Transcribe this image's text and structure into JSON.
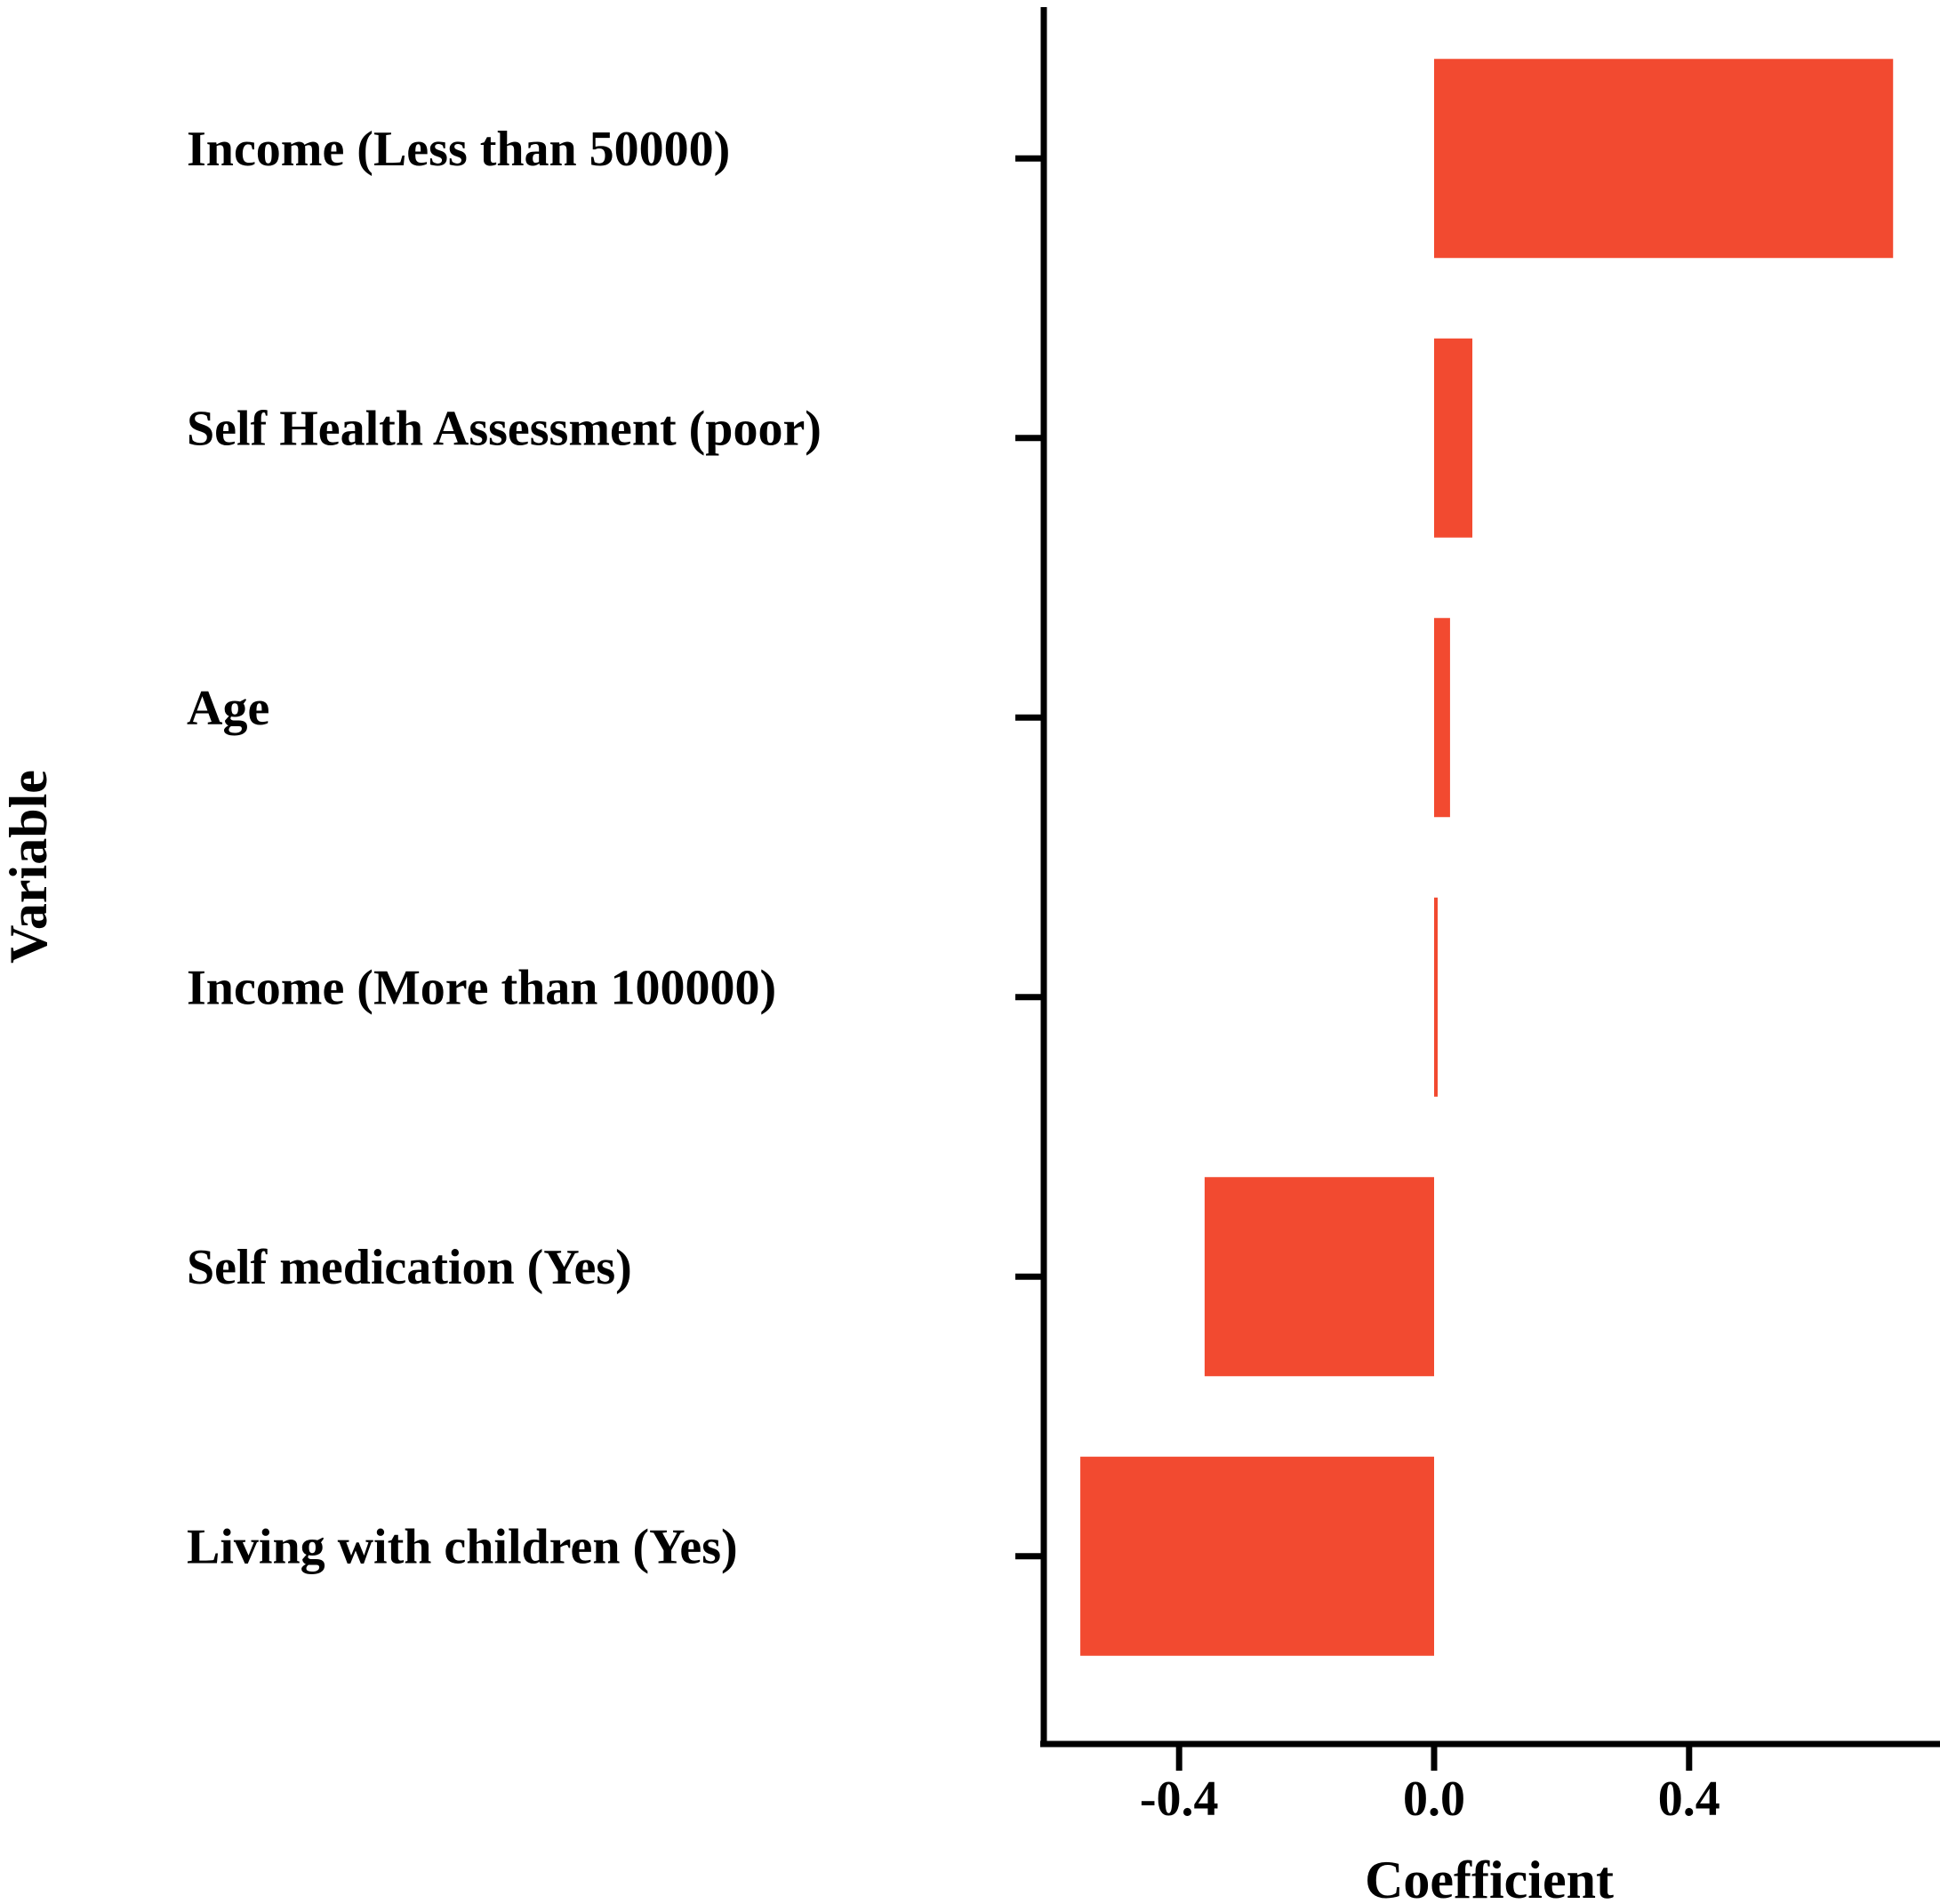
{
  "chart_data": {
    "type": "bar",
    "orientation": "horizontal",
    "categories": [
      "Income (Less than 50000)",
      "Self Health Assessment (poor)",
      "Age",
      "Income (More than 100000)",
      "Self medication (Yes)",
      "Living with children (Yes)"
    ],
    "values": [
      0.72,
      0.06,
      0.025,
      0.005,
      -0.36,
      -0.555
    ],
    "title": "",
    "xlabel": "Coefficient",
    "ylabel": "Variable",
    "xlim": [
      -0.61,
      0.79
    ],
    "xticks": [
      -0.4,
      0.0,
      0.4
    ],
    "xtick_labels": [
      "-0.4",
      "0.0",
      "0.4"
    ],
    "grid": false,
    "legend": "none",
    "bar_color": "#F24A30",
    "axis_color": "#000000"
  }
}
